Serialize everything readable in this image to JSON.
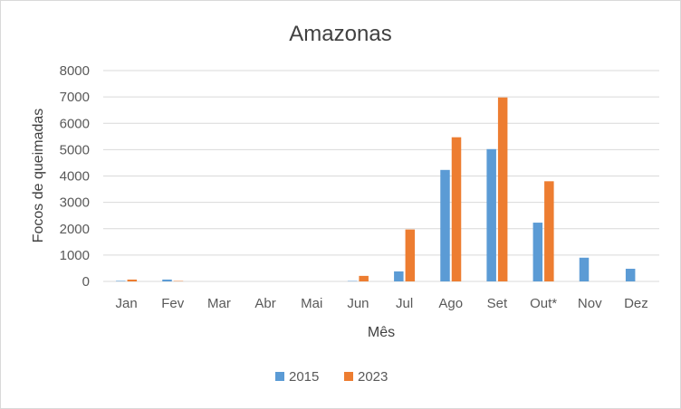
{
  "chart_data": {
    "type": "bar",
    "title": "Amazonas",
    "xlabel": "Mês",
    "ylabel": "Focos de queimadas",
    "categories": [
      "Jan",
      "Fev",
      "Mar",
      "Abr",
      "Mai",
      "Jun",
      "Jul",
      "Ago",
      "Set",
      "Out*",
      "Nov",
      "Dez"
    ],
    "series": [
      {
        "name": "2015",
        "color": "#5b9bd5",
        "values": [
          20,
          70,
          0,
          0,
          0,
          15,
          380,
          4230,
          5020,
          2230,
          900,
          480
        ]
      },
      {
        "name": "2023",
        "color": "#ed7d31",
        "values": [
          70,
          15,
          0,
          0,
          0,
          210,
          1970,
          5470,
          6980,
          3800,
          0,
          0
        ]
      }
    ],
    "ylim": [
      0,
      8000
    ],
    "yticks": [
      "0",
      "1000",
      "2000",
      "3000",
      "4000",
      "5000",
      "6000",
      "7000",
      "8000"
    ],
    "grid": true,
    "legend_position": "bottom"
  }
}
